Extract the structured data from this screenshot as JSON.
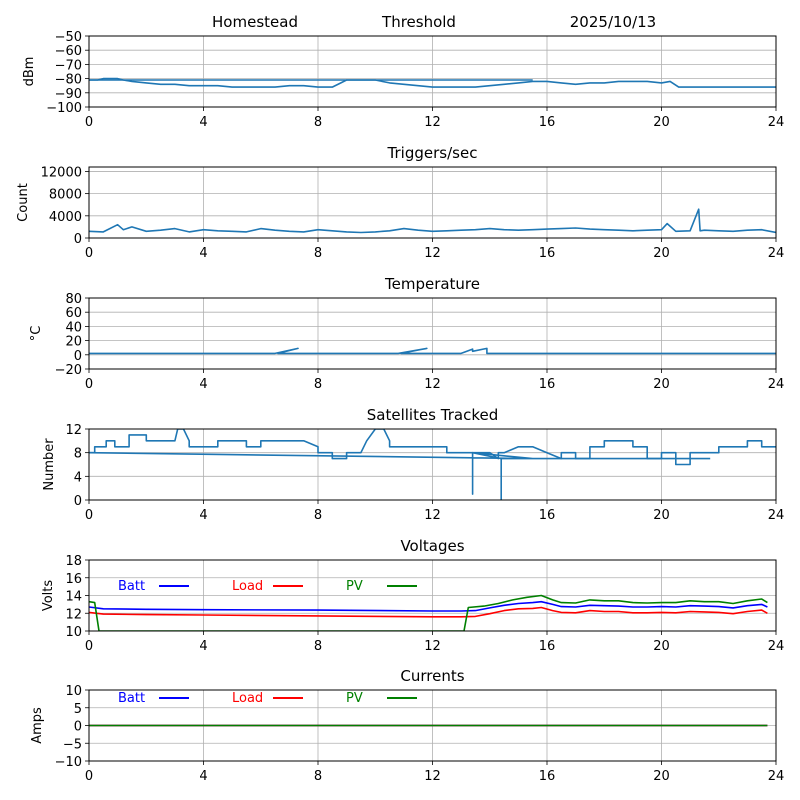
{
  "header": {
    "station": "Homestead",
    "mode": "Threshold",
    "date": "2025/10/13"
  },
  "chart_data": [
    {
      "id": "signal",
      "type": "line",
      "title": "",
      "xlabel": "",
      "ylabel": "dBm",
      "xlim": [
        0,
        24
      ],
      "ylim": [
        -100,
        -50
      ],
      "xticks": [
        0,
        4,
        8,
        12,
        16,
        20,
        24
      ],
      "yticks": [
        -100,
        -90,
        -80,
        -70,
        -60,
        -50
      ],
      "ytick_labels": [
        "−100",
        "−90",
        "−80",
        "−70",
        "−60",
        "−50"
      ],
      "grid": true,
      "series": [
        {
          "name": "signal",
          "color": "#1f77b4",
          "x": [
            0,
            0.3,
            0.5,
            1.0,
            1.2,
            1.5,
            2.0,
            2.5,
            3.0,
            3.5,
            4.0,
            4.5,
            5.0,
            5.5,
            6.0,
            6.5,
            7.0,
            7.5,
            8.0,
            8.5,
            8.8,
            9.0,
            9.5,
            10.0,
            10.5,
            11.0,
            11.5,
            12.0,
            12.5,
            13.0,
            13.5,
            14.0,
            14.5,
            15.0,
            15.5,
            16.0,
            16.5,
            17.0,
            17.5,
            18.0,
            18.5,
            19.0,
            19.5,
            20.0,
            20.3,
            20.6,
            21.0,
            21.5,
            22.0,
            22.5,
            23.0,
            23.5,
            24.0
          ],
          "y": [
            -81,
            -81,
            -80,
            -80,
            -81,
            -82,
            -83,
            -84,
            -84,
            -85,
            -85,
            -85,
            -86,
            -86,
            -86,
            -86,
            -85,
            -85,
            -86,
            -86,
            -83,
            -81,
            -81,
            -81,
            -83,
            -84,
            -85,
            -86,
            -86,
            -86,
            -86,
            -85,
            -84,
            -83,
            -82,
            -82,
            -83,
            -84,
            -83,
            -83,
            -82,
            -82,
            -82,
            -83,
            -82,
            -86,
            -86,
            -86,
            -86,
            -86,
            -86,
            -86,
            -86
          ]
        },
        {
          "name": "signal-wrap",
          "color": "#1f77b4",
          "x": [
            0,
            15.5
          ],
          "y": [
            -81,
            -81
          ]
        }
      ]
    },
    {
      "id": "triggers",
      "type": "line",
      "title": "Triggers/sec",
      "xlabel": "",
      "ylabel": "Count",
      "xlim": [
        0,
        24
      ],
      "ylim": [
        0,
        12800
      ],
      "xticks": [
        0,
        4,
        8,
        12,
        16,
        20,
        24
      ],
      "yticks": [
        0,
        4000,
        8000,
        12000
      ],
      "ytick_labels": [
        "0",
        "4000",
        "8000",
        "12000"
      ],
      "grid": true,
      "series": [
        {
          "name": "triggers",
          "color": "#1f77b4",
          "x": [
            0,
            0.5,
            1.0,
            1.2,
            1.5,
            2.0,
            2.5,
            3.0,
            3.5,
            4.0,
            4.5,
            5.0,
            5.5,
            6.0,
            6.5,
            7.0,
            7.5,
            8.0,
            8.5,
            9.0,
            9.5,
            10.0,
            10.5,
            11.0,
            11.5,
            12.0,
            12.5,
            13.0,
            13.5,
            14.0,
            14.5,
            15.0,
            15.5,
            16.0,
            16.5,
            17.0,
            17.5,
            18.0,
            18.5,
            19.0,
            19.5,
            20.0,
            20.2,
            20.5,
            21.0,
            21.3,
            21.35,
            21.5,
            22.0,
            22.5,
            23.0,
            23.5,
            24.0
          ],
          "y": [
            1200,
            1100,
            2400,
            1500,
            2000,
            1200,
            1400,
            1700,
            1100,
            1500,
            1300,
            1200,
            1100,
            1700,
            1400,
            1200,
            1100,
            1500,
            1300,
            1100,
            1000,
            1100,
            1300,
            1700,
            1400,
            1200,
            1300,
            1400,
            1500,
            1700,
            1500,
            1400,
            1500,
            1600,
            1700,
            1800,
            1600,
            1500,
            1400,
            1300,
            1400,
            1500,
            2600,
            1200,
            1300,
            5200,
            1300,
            1400,
            1300,
            1200,
            1400,
            1500,
            1000
          ]
        }
      ]
    },
    {
      "id": "temperature",
      "type": "line",
      "title": "Temperature",
      "xlabel": "",
      "ylabel": "°C",
      "xlim": [
        0,
        24
      ],
      "ylim": [
        -20,
        80
      ],
      "xticks": [
        0,
        4,
        8,
        12,
        16,
        20,
        24
      ],
      "yticks": [
        -20,
        0,
        20,
        40,
        60,
        80
      ],
      "ytick_labels": [
        "−20",
        "0",
        "20",
        "40",
        "60",
        "80"
      ],
      "grid": true,
      "series": [
        {
          "name": "temperature",
          "color": "#1f77b4",
          "x": [
            0,
            6.5,
            7.3,
            6.6,
            10.8,
            11.8,
            10.9,
            13.0,
            13.4,
            13.4,
            13.9,
            13.9,
            15.3,
            24.0
          ],
          "y": [
            2,
            2,
            9,
            2,
            2,
            9,
            2,
            2,
            8,
            5,
            9,
            2,
            2,
            2
          ]
        }
      ]
    },
    {
      "id": "satellites",
      "type": "line",
      "title": "Satellites Tracked",
      "xlabel": "",
      "ylabel": "Number",
      "xlim": [
        0,
        24
      ],
      "ylim": [
        0,
        12
      ],
      "xticks": [
        0,
        4,
        8,
        12,
        16,
        20,
        24
      ],
      "yticks": [
        0,
        4,
        8,
        12
      ],
      "ytick_labels": [
        "0",
        "4",
        "8",
        "12"
      ],
      "grid": true,
      "series": [
        {
          "name": "satellites",
          "color": "#1f77b4",
          "x": [
            0,
            0.2,
            0.2,
            0.6,
            0.6,
            0.9,
            0.9,
            1.4,
            1.4,
            2.0,
            2.0,
            3.0,
            3.1,
            3.3,
            3.5,
            3.5,
            4.5,
            4.5,
            5.5,
            5.5,
            6.0,
            6.0,
            7.5,
            8.0,
            8.0,
            8.5,
            8.5,
            9.0,
            9.0,
            9.5,
            9.7,
            10.0,
            10.3,
            10.5,
            10.5,
            11.0,
            11.0,
            12.5,
            12.5,
            13.5,
            13.5,
            14.0,
            14.3,
            14.3,
            14.5,
            15.0,
            15.5,
            16.0,
            16.0,
            16.5,
            16.5,
            17.0,
            17.0,
            17.5,
            17.5,
            18.0,
            18.0,
            19.0,
            19.0,
            19.5,
            19.5,
            20.0,
            20.0,
            20.5,
            20.5,
            21.0,
            21.0,
            22.0,
            22.0,
            23.0,
            23.0,
            23.5,
            23.5,
            24.0
          ],
          "y": [
            8,
            8,
            9,
            9,
            10,
            10,
            9,
            9,
            11,
            11,
            10,
            10,
            12,
            12,
            10,
            9,
            9,
            10,
            10,
            9,
            9,
            10,
            10,
            9,
            8,
            8,
            7,
            7,
            8,
            8,
            10,
            12,
            12,
            10,
            9,
            9,
            9,
            9,
            8,
            8,
            8,
            8,
            7,
            8,
            8,
            9,
            9,
            8,
            8,
            7,
            8,
            8,
            7,
            7,
            9,
            9,
            10,
            10,
            9,
            9,
            7,
            7,
            8,
            8,
            6,
            6,
            8,
            8,
            9,
            9,
            10,
            10,
            9,
            9
          ]
        },
        {
          "name": "satellites-wrap",
          "color": "#1f77b4",
          "x": [
            0,
            15.5,
            13.4,
            13.4,
            13.4,
            14.4,
            14.4,
            14.4,
            21.7
          ],
          "y": [
            8,
            7,
            8,
            1,
            8,
            7,
            0,
            7,
            7
          ]
        }
      ]
    },
    {
      "id": "voltages",
      "type": "line",
      "title": "Voltages",
      "xlabel": "",
      "ylabel": "Volts",
      "xlim": [
        0,
        24
      ],
      "ylim": [
        10,
        18
      ],
      "xticks": [
        0,
        4,
        8,
        12,
        16,
        20,
        24
      ],
      "yticks": [
        10,
        12,
        14,
        16,
        18
      ],
      "ytick_labels": [
        "10",
        "12",
        "14",
        "16",
        "18"
      ],
      "grid": true,
      "legend": {
        "placement": "upper-left-inline",
        "entries": [
          "Batt",
          "Load",
          "PV"
        ]
      },
      "series": [
        {
          "name": "Batt",
          "color": "#0000ff",
          "x": [
            0,
            0.5,
            2,
            4,
            8,
            12,
            13,
            13.5,
            14,
            14.5,
            15,
            15.5,
            15.8,
            16.2,
            16.5,
            17,
            17.5,
            18,
            18.5,
            19,
            19.5,
            20,
            20.5,
            21,
            21.5,
            22,
            22.5,
            23,
            23.5,
            23.7
          ],
          "y": [
            12.7,
            12.5,
            12.45,
            12.4,
            12.35,
            12.25,
            12.25,
            12.3,
            12.6,
            12.9,
            13.1,
            13.2,
            13.3,
            13.0,
            12.75,
            12.7,
            12.9,
            12.85,
            12.8,
            12.7,
            12.7,
            12.75,
            12.7,
            12.85,
            12.8,
            12.75,
            12.6,
            12.85,
            13.0,
            12.7
          ]
        },
        {
          "name": "Load",
          "color": "#ff0000",
          "x": [
            0,
            0.5,
            2,
            4,
            8,
            12,
            13,
            13.5,
            14,
            14.5,
            15,
            15.5,
            15.8,
            16.2,
            16.5,
            17,
            17.5,
            18,
            18.5,
            19,
            19.5,
            20,
            20.5,
            21,
            21.5,
            22,
            22.5,
            23,
            23.5,
            23.7
          ],
          "y": [
            12.1,
            11.9,
            11.85,
            11.8,
            11.7,
            11.6,
            11.6,
            11.65,
            11.95,
            12.3,
            12.5,
            12.55,
            12.65,
            12.3,
            12.1,
            12.05,
            12.3,
            12.2,
            12.2,
            12.05,
            12.05,
            12.1,
            12.05,
            12.2,
            12.15,
            12.1,
            11.95,
            12.2,
            12.35,
            12.0
          ]
        },
        {
          "name": "PV",
          "color": "#008000",
          "x": [
            0,
            0.2,
            0.35,
            13.1,
            13.25,
            13.8,
            14.3,
            14.8,
            15.3,
            15.8,
            16.2,
            16.5,
            17,
            17.5,
            18,
            18.5,
            19,
            19.5,
            20,
            20.5,
            21,
            21.5,
            22,
            22.5,
            23,
            23.5,
            23.7
          ],
          "y": [
            13.3,
            13.2,
            10,
            10,
            12.65,
            12.8,
            13.1,
            13.5,
            13.8,
            14.0,
            13.5,
            13.2,
            13.15,
            13.5,
            13.4,
            13.4,
            13.2,
            13.15,
            13.2,
            13.2,
            13.4,
            13.3,
            13.3,
            13.1,
            13.4,
            13.6,
            13.2
          ]
        }
      ]
    },
    {
      "id": "currents",
      "type": "line",
      "title": "Currents",
      "xlabel": "",
      "ylabel": "Amps",
      "xlim": [
        0,
        24
      ],
      "ylim": [
        -10,
        10
      ],
      "xticks": [
        0,
        4,
        8,
        12,
        16,
        20,
        24
      ],
      "yticks": [
        -10,
        -5,
        0,
        5,
        10
      ],
      "ytick_labels": [
        "−10",
        "−5",
        "0",
        "5",
        "10"
      ],
      "grid": true,
      "legend": {
        "placement": "upper-left-inline",
        "entries": [
          "Batt",
          "Load",
          "PV"
        ]
      },
      "series": [
        {
          "name": "Batt",
          "color": "#0000ff",
          "x": [
            0,
            23.7
          ],
          "y": [
            0,
            0
          ]
        },
        {
          "name": "Load",
          "color": "#ff0000",
          "x": [
            0,
            23.7
          ],
          "y": [
            0,
            0
          ]
        },
        {
          "name": "PV",
          "color": "#008000",
          "x": [
            0,
            23.7
          ],
          "y": [
            0,
            0
          ]
        }
      ]
    }
  ]
}
